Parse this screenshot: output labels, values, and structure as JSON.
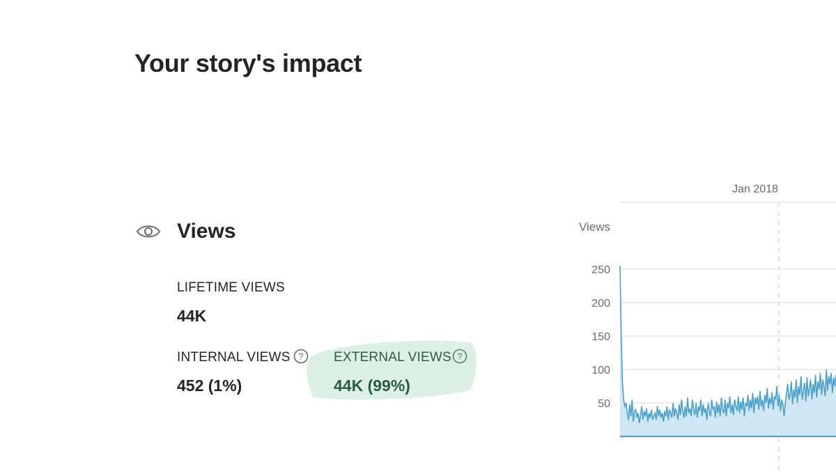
{
  "header": {
    "title": "Your story's impact"
  },
  "views": {
    "icon": "eye-icon",
    "heading": "Views",
    "lifetime_label": "LIFETIME VIEWS",
    "lifetime_value": "44K",
    "internal_label": "INTERNAL VIEWS",
    "internal_value": "452 (1%)",
    "external_label": "EXTERNAL VIEWS",
    "external_value": "44K (99%)",
    "help_icon": "question-circle-icon",
    "highlight_color": "#dcf0e6"
  },
  "chart_data": {
    "type": "area",
    "ylabel": "Views",
    "yticks": [
      50,
      100,
      150,
      200,
      250
    ],
    "ylim": [
      0,
      260
    ],
    "marker": {
      "label": "Jan 2018",
      "style": "dashed"
    },
    "grid": true,
    "series_color": "#4a9fcb",
    "fill_color": "#cfe7f4",
    "values": [
      255,
      150,
      80,
      55,
      45,
      50,
      35,
      25,
      48,
      30,
      55,
      22,
      38,
      40,
      28,
      35,
      20,
      32,
      45,
      25,
      38,
      30,
      42,
      22,
      35,
      28,
      40,
      25,
      30,
      35,
      25,
      45,
      30,
      40,
      28,
      35,
      22,
      38,
      30,
      45,
      25,
      40,
      35,
      28,
      50,
      30,
      42,
      35,
      25,
      48,
      32,
      55,
      38,
      28,
      45,
      30,
      58,
      35,
      42,
      30,
      55,
      40,
      32,
      50,
      28,
      45,
      38,
      55,
      30,
      48,
      35,
      42,
      25,
      50,
      38,
      30,
      55,
      40,
      45,
      28,
      52,
      35,
      48,
      30,
      58,
      40,
      35,
      55,
      30,
      50,
      42,
      60,
      35,
      48,
      32,
      55,
      45,
      38,
      60,
      35,
      52,
      40,
      58,
      30,
      50,
      45,
      62,
      38,
      55,
      42,
      65,
      35,
      58,
      48,
      60,
      40,
      68,
      45,
      55,
      38,
      62,
      50,
      72,
      42,
      58,
      48,
      66,
      40,
      60,
      55,
      75,
      45,
      62,
      38,
      55,
      48,
      30,
      50,
      65,
      78,
      55,
      62,
      82,
      48,
      70,
      58,
      85,
      50,
      75,
      62,
      90,
      55,
      68,
      80,
      52,
      88,
      60,
      72,
      85,
      55,
      78,
      65,
      92,
      58,
      82,
      70,
      95,
      62,
      85,
      75,
      60,
      100,
      68,
      90,
      78,
      95,
      65,
      88,
      75,
      92
    ]
  }
}
